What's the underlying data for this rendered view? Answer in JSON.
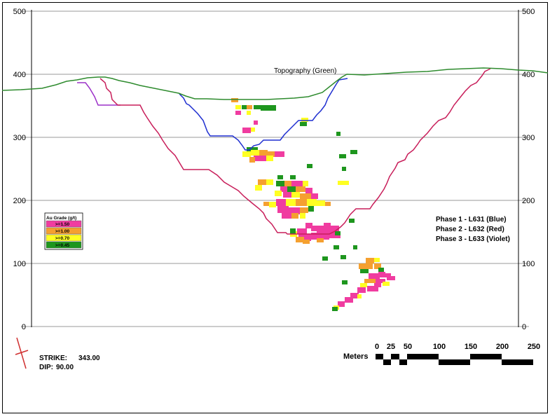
{
  "section": {
    "y_axis": {
      "ticks": [
        0,
        100,
        200,
        300,
        400,
        500
      ],
      "range": [
        0,
        500
      ]
    },
    "topography_label": "Topography (Green)",
    "colors": {
      "topography": "#2e8b2e",
      "phase1": "#1f2fd0",
      "phase2": "#c81e5a",
      "phase3": "#9b30c8",
      "frame": "#000000",
      "gridline": "#9a9a9a"
    },
    "legend": {
      "title": "Au Grade (g/t)",
      "items": [
        {
          "label": ">=1.50",
          "color": "#f03ca0"
        },
        {
          "label": ">=1.00",
          "color": "#f5a030"
        },
        {
          "label": ">=0.70",
          "color": "#ffff22"
        },
        {
          "label": ">=0.45",
          "color": "#1e961e"
        }
      ]
    },
    "phases": [
      {
        "label": "Phase 1 - L631 (Blue)"
      },
      {
        "label": "Phase 2 - L632 (Red)"
      },
      {
        "label": "Phase 3 - L633 (Violet)"
      }
    ],
    "strike": {
      "label": "STRIKE:",
      "value": "343.00"
    },
    "dip": {
      "label": "DIP:",
      "value": "90.00"
    },
    "scale_bar": {
      "unit_label": "Meters",
      "ticks": [
        "0",
        "25",
        "50",
        "100",
        "150",
        "200",
        "250"
      ]
    }
  }
}
